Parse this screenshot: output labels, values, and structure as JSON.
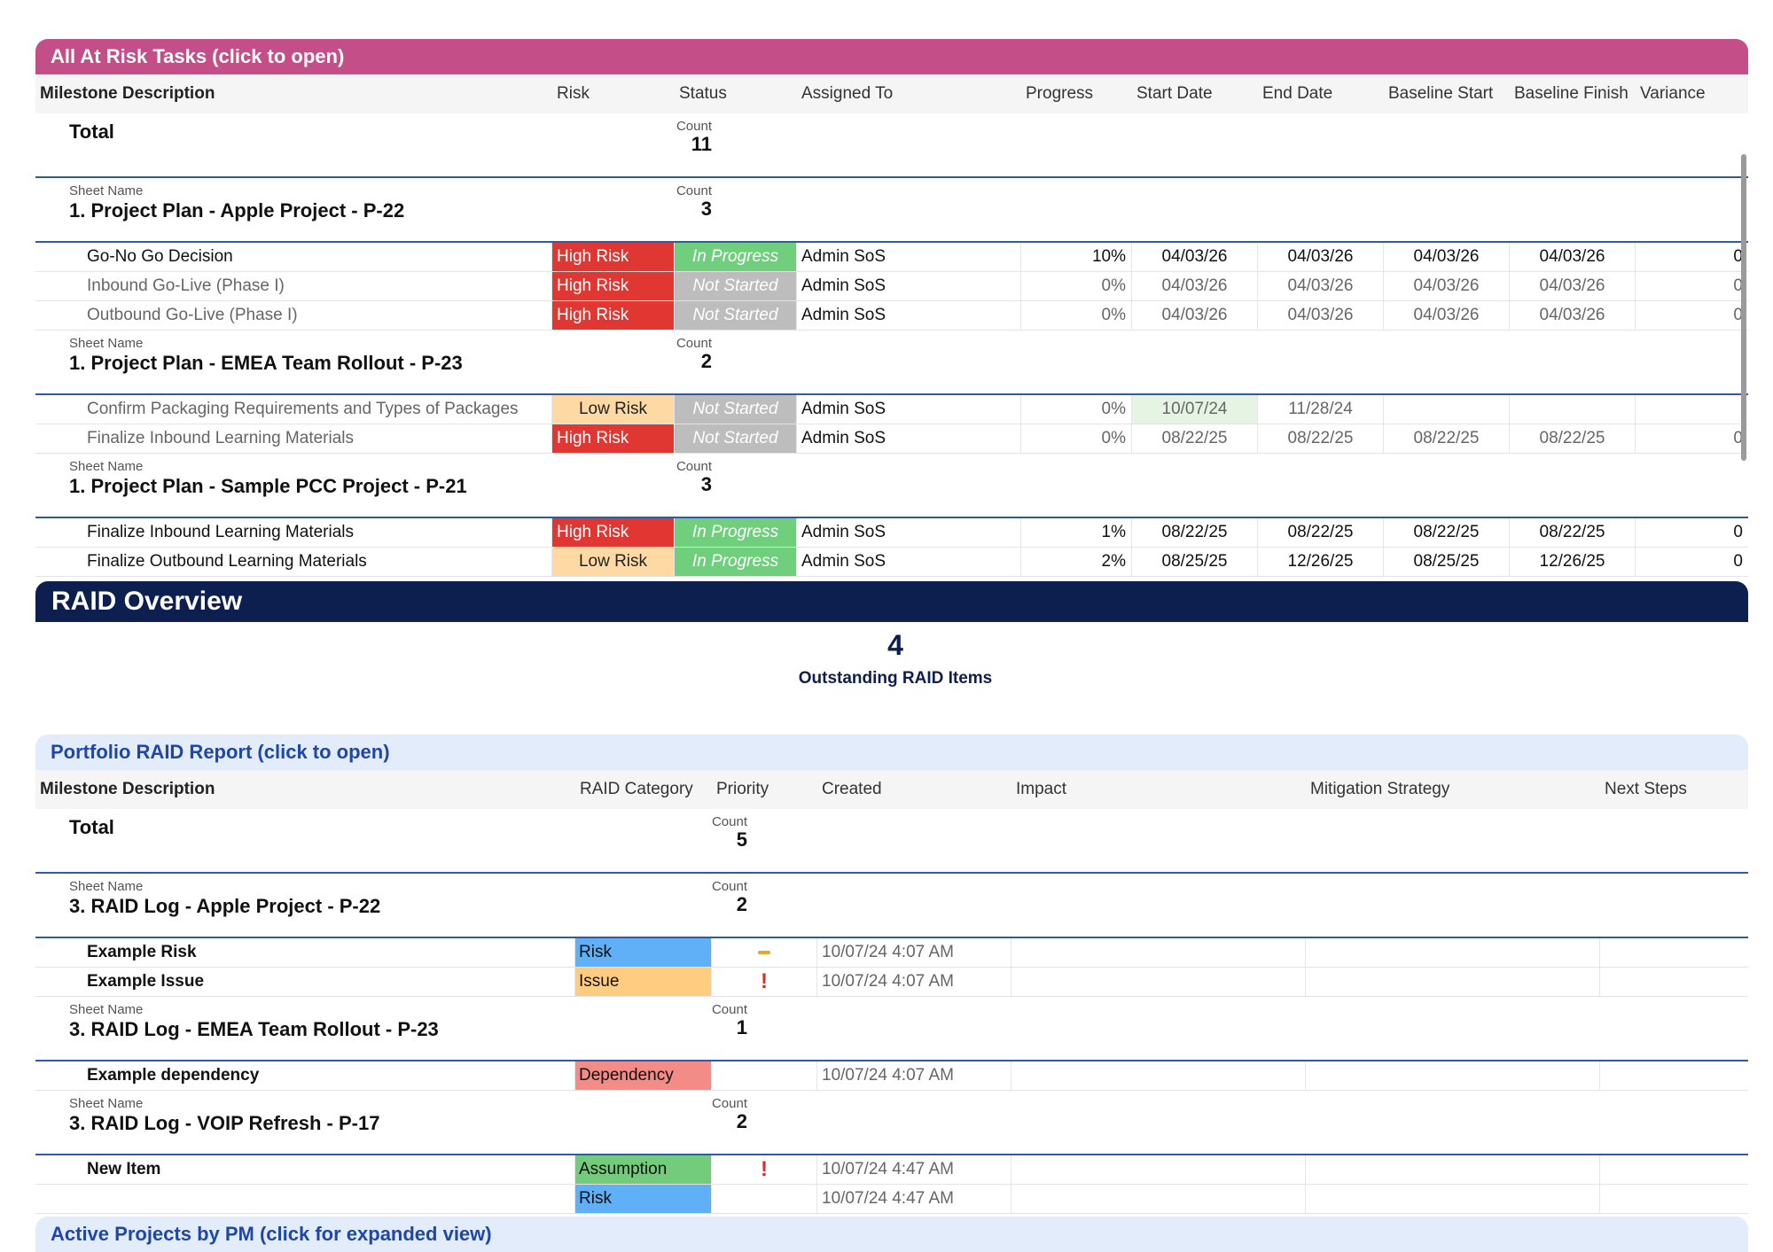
{
  "at_risk": {
    "title": "All At Risk Tasks (click to open)",
    "columns": [
      "Milestone Description",
      "Risk",
      "Status",
      "Assigned To",
      "Progress",
      "Start Date",
      "End Date",
      "Baseline Start",
      "Baseline Finish",
      "Variance"
    ],
    "total": {
      "label": "Total",
      "count_caption": "Count",
      "count": "11"
    },
    "groups": [
      {
        "caption": "Sheet Name",
        "title": "1. Project Plan - Apple Project - P-22",
        "count_caption": "Count",
        "count": "3",
        "rows": [
          {
            "name": "Go-No Go Decision",
            "risk": "High Risk",
            "status": "In Progress",
            "assigned": "Admin SoS",
            "progress": "10%",
            "start": "04/03/26",
            "end": "04/03/26",
            "bstart": "04/03/26",
            "bfinish": "04/03/26",
            "variance": "0"
          },
          {
            "name": "Inbound Go-Live (Phase I)",
            "risk": "High Risk",
            "status": "Not Started",
            "assigned": "Admin SoS",
            "progress": "0%",
            "start": "04/03/26",
            "end": "04/03/26",
            "bstart": "04/03/26",
            "bfinish": "04/03/26",
            "variance": "0"
          },
          {
            "name": "Outbound Go-Live (Phase I)",
            "risk": "High Risk",
            "status": "Not Started",
            "assigned": "Admin SoS",
            "progress": "0%",
            "start": "04/03/26",
            "end": "04/03/26",
            "bstart": "04/03/26",
            "bfinish": "04/03/26",
            "variance": "0"
          }
        ]
      },
      {
        "caption": "Sheet Name",
        "title": "1. Project Plan - EMEA Team Rollout - P-23",
        "count_caption": "Count",
        "count": "2",
        "rows": [
          {
            "name": "Confirm Packaging Requirements and Types of Packages",
            "risk": "Low Risk",
            "status": "Not Started",
            "assigned": "Admin SoS",
            "progress": "0%",
            "start": "10/07/24",
            "end": "11/28/24",
            "bstart": "",
            "bfinish": "",
            "variance": ""
          },
          {
            "name": "Finalize Inbound Learning Materials",
            "risk": "High Risk",
            "status": "Not Started",
            "assigned": "Admin SoS",
            "progress": "0%",
            "start": "08/22/25",
            "end": "08/22/25",
            "bstart": "08/22/25",
            "bfinish": "08/22/25",
            "variance": "0"
          }
        ]
      },
      {
        "caption": "Sheet Name",
        "title": "1. Project Plan - Sample PCC Project - P-21",
        "count_caption": "Count",
        "count": "3",
        "rows": [
          {
            "name": "Finalize Inbound Learning Materials",
            "risk": "High Risk",
            "status": "In Progress",
            "assigned": "Admin SoS",
            "progress": "1%",
            "start": "08/22/25",
            "end": "08/22/25",
            "bstart": "08/22/25",
            "bfinish": "08/22/25",
            "variance": "0"
          },
          {
            "name": "Finalize Outbound Learning Materials",
            "risk": "Low Risk",
            "status": "In Progress",
            "assigned": "Admin SoS",
            "progress": "2%",
            "start": "08/25/25",
            "end": "12/26/25",
            "bstart": "08/25/25",
            "bfinish": "12/26/25",
            "variance": "0"
          }
        ]
      }
    ]
  },
  "raid_overview": {
    "title": "RAID Overview",
    "kpi_value": "4",
    "kpi_label": "Outstanding RAID Items"
  },
  "raid_report": {
    "title": "Portfolio RAID Report (click to open)",
    "columns": [
      "Milestone Description",
      "RAID Category",
      "Priority",
      "Created",
      "Impact",
      "Mitigation Strategy",
      "Next Steps"
    ],
    "total": {
      "label": "Total",
      "count_caption": "Count",
      "count": "5"
    },
    "groups": [
      {
        "caption": "Sheet Name",
        "title": "3. RAID Log - Apple Project - P-22",
        "count_caption": "Count",
        "count": "2",
        "rows": [
          {
            "name": "Example Risk",
            "category": "Risk",
            "priority": "medium",
            "created": "10/07/24 4:07 AM"
          },
          {
            "name": "Example Issue",
            "category": "Issue",
            "priority": "high",
            "created": "10/07/24 4:07 AM"
          }
        ]
      },
      {
        "caption": "Sheet Name",
        "title": "3. RAID Log - EMEA Team Rollout - P-23",
        "count_caption": "Count",
        "count": "1",
        "rows": [
          {
            "name": "Example dependency",
            "category": "Dependency",
            "priority": "",
            "created": "10/07/24 4:07 AM"
          }
        ]
      },
      {
        "caption": "Sheet Name",
        "title": "3. RAID Log - VOIP Refresh - P-17",
        "count_caption": "Count",
        "count": "2",
        "rows": [
          {
            "name": "New Item",
            "category": "Assumption",
            "priority": "high",
            "created": "10/07/24 4:47 AM"
          },
          {
            "name": "",
            "category": "Risk",
            "priority": "",
            "created": "10/07/24 4:47 AM"
          }
        ]
      }
    ]
  },
  "active_projects": {
    "title": "Active Projects by PM (click for expanded view)"
  },
  "colors": {
    "at_risk_header": "#c44f88",
    "raid_banner": "#0d1f4f",
    "raid_report_header": "#e3ecfb",
    "raid_report_title": "#1f47a8",
    "high_risk": "#e13733",
    "low_risk": "#ffd9a3",
    "in_progress": "#6fcf7c",
    "not_started": "#bdbdbd"
  }
}
